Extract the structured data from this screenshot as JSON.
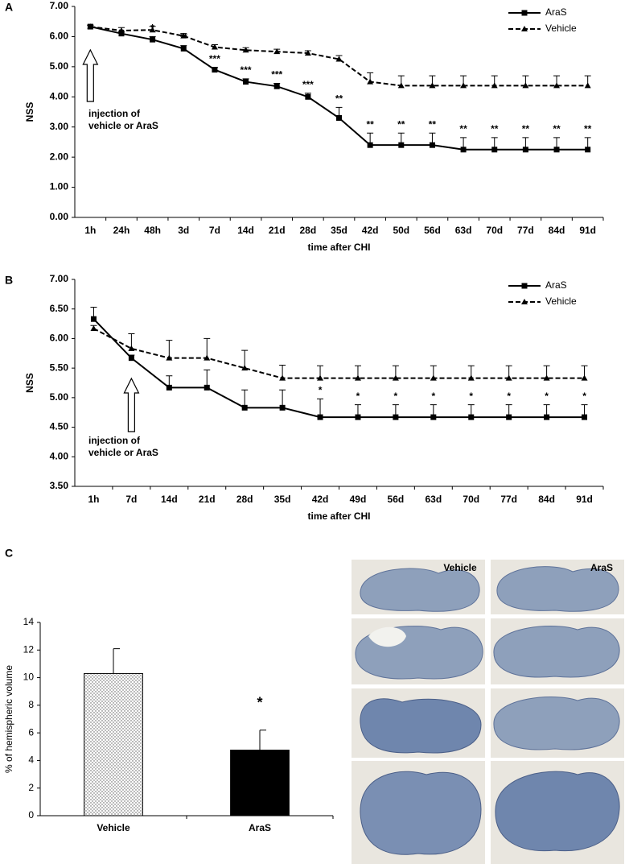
{
  "chart_data": [
    {
      "type": "line",
      "panel_label": "A",
      "y_label": "NSS",
      "x_label": "time after CHI",
      "categories": [
        "1h",
        "24h",
        "48h",
        "3d",
        "7d",
        "14d",
        "21d",
        "28d",
        "35d",
        "42d",
        "50d",
        "56d",
        "63d",
        "70d",
        "77d",
        "84d",
        "91d"
      ],
      "ylim": [
        0,
        7
      ],
      "yticks": [
        {
          "value": 0,
          "label": "0.00"
        },
        {
          "value": 1,
          "label": "1.00"
        },
        {
          "value": 2,
          "label": "2.00"
        },
        {
          "value": 3,
          "label": "3.00"
        },
        {
          "value": 4,
          "label": "4.00"
        },
        {
          "value": 5,
          "label": "5.00"
        },
        {
          "value": 6,
          "label": "6.00"
        },
        {
          "value": 7,
          "label": "7.00"
        }
      ],
      "series": [
        {
          "name": "AraS",
          "color": "#000000",
          "marker": "square",
          "dash": "solid",
          "values": [
            6.33,
            6.1,
            5.9,
            5.6,
            4.9,
            4.5,
            4.35,
            4.0,
            3.3,
            2.4,
            2.4,
            2.4,
            2.25,
            2.25,
            2.25,
            2.25,
            2.25
          ],
          "errors": [
            0.05,
            0.08,
            0.1,
            0.1,
            0.08,
            0.1,
            0.1,
            0.12,
            0.35,
            0.4,
            0.4,
            0.4,
            0.4,
            0.4,
            0.4,
            0.4,
            0.4
          ]
        },
        {
          "name": "Vehicle",
          "color": "#000000",
          "marker": "triangle",
          "dash": "dashed",
          "values": [
            6.33,
            6.2,
            6.22,
            6.02,
            5.65,
            5.55,
            5.5,
            5.45,
            5.25,
            4.5,
            4.37,
            4.37,
            4.37,
            4.37,
            4.37,
            4.37,
            4.37
          ],
          "errors": [
            0.05,
            0.1,
            0.12,
            0.08,
            0.08,
            0.08,
            0.08,
            0.08,
            0.12,
            0.3,
            0.33,
            0.33,
            0.33,
            0.33,
            0.33,
            0.33,
            0.33
          ]
        }
      ],
      "significance": [
        null,
        null,
        "*",
        "**",
        "***",
        "***",
        "***",
        "***",
        "**",
        "**",
        "**",
        "**",
        "**",
        "**",
        "**",
        "**",
        "**"
      ],
      "annotation": [
        "injection of",
        "vehicle or AraS"
      ],
      "legend": "top-right"
    },
    {
      "type": "line",
      "panel_label": "B",
      "y_label": "NSS",
      "x_label": "time after CHI",
      "categories": [
        "1h",
        "7d",
        "14d",
        "21d",
        "28d",
        "35d",
        "42d",
        "49d",
        "56d",
        "63d",
        "70d",
        "77d",
        "84d",
        "91d"
      ],
      "ylim": [
        3.5,
        7
      ],
      "yticks": [
        {
          "value": 3.5,
          "label": "3.50"
        },
        {
          "value": 4,
          "label": "4.00"
        },
        {
          "value": 4.5,
          "label": "4.50"
        },
        {
          "value": 5,
          "label": "5.00"
        },
        {
          "value": 5.5,
          "label": "5.50"
        },
        {
          "value": 6,
          "label": "6.00"
        },
        {
          "value": 6.5,
          "label": "6.50"
        },
        {
          "value": 7,
          "label": "7.00"
        }
      ],
      "series": [
        {
          "name": "AraS",
          "color": "#000000",
          "marker": "square",
          "dash": "solid",
          "values": [
            6.33,
            5.67,
            5.17,
            5.17,
            4.83,
            4.83,
            4.67,
            4.67,
            4.67,
            4.67,
            4.67,
            4.67,
            4.67,
            4.67
          ],
          "errors": [
            0.2,
            0.05,
            0.2,
            0.3,
            0.3,
            0.3,
            0.31,
            0.21,
            0.21,
            0.21,
            0.21,
            0.21,
            0.21,
            0.21
          ]
        },
        {
          "name": "Vehicle",
          "color": "#000000",
          "marker": "triangle",
          "dash": "dashed",
          "values": [
            6.17,
            5.83,
            5.67,
            5.67,
            5.5,
            5.33,
            5.33,
            5.33,
            5.33,
            5.33,
            5.33,
            5.33,
            5.33,
            5.33
          ],
          "errors": [
            0.05,
            0.25,
            0.3,
            0.33,
            0.3,
            0.22,
            0.21,
            0.21,
            0.21,
            0.21,
            0.21,
            0.21,
            0.21,
            0.21
          ]
        }
      ],
      "significance": [
        null,
        null,
        null,
        null,
        null,
        null,
        "*",
        "*",
        "*",
        "*",
        "*",
        "*",
        "*",
        "*"
      ],
      "annotation": [
        "injection of",
        "vehicle or AraS"
      ],
      "legend": "top-right"
    },
    {
      "type": "bar",
      "panel_label": "C",
      "y_label": "% of hemispheric volume",
      "categories": [
        "Vehicle",
        "AraS"
      ],
      "values": [
        10.3,
        4.75
      ],
      "errors": [
        1.8,
        1.45
      ],
      "patterns": [
        "dots",
        "solid"
      ],
      "color": "#000000",
      "ylim": [
        0,
        14
      ],
      "yticks": [
        0,
        2,
        4,
        6,
        8,
        10,
        12,
        14
      ],
      "significance": [
        null,
        "*"
      ]
    }
  ],
  "image_panel": {
    "column_labels": [
      "Vehicle",
      "AraS"
    ]
  }
}
